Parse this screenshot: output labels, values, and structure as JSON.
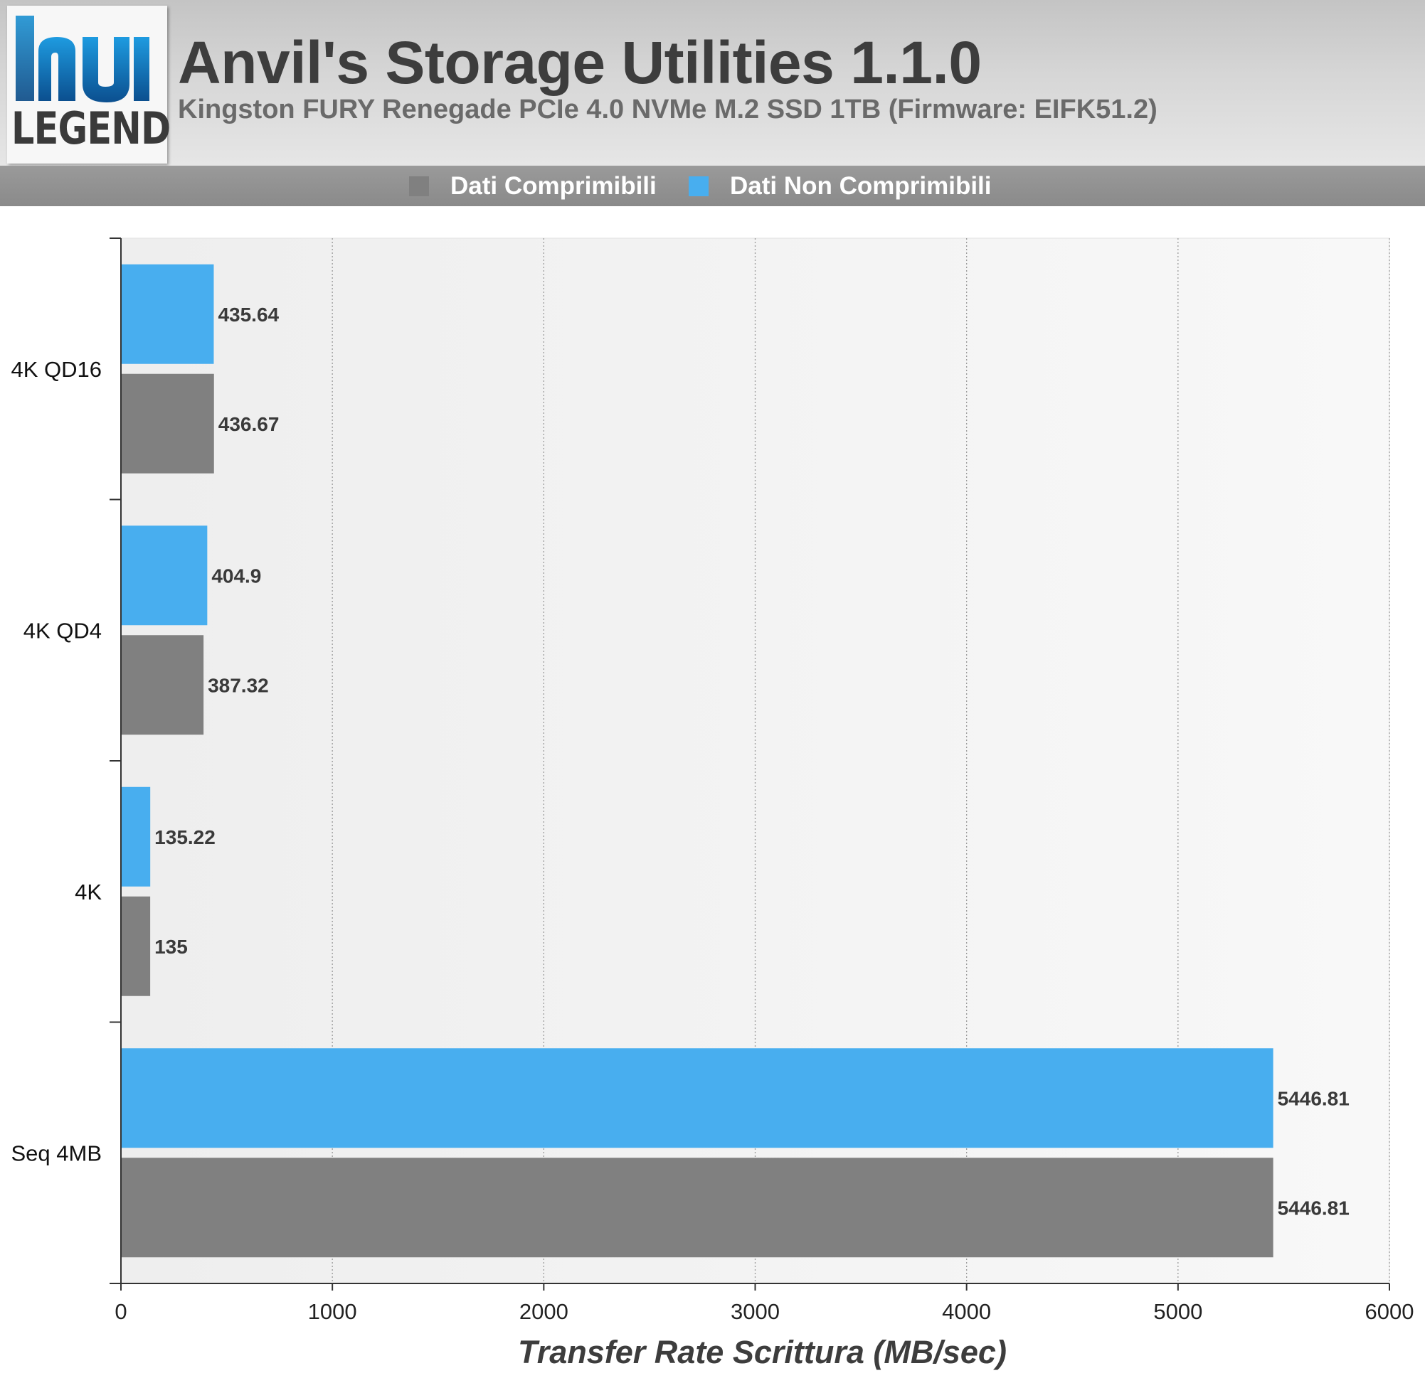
{
  "header": {
    "title": "Anvil's Storage Utilities 1.1.0",
    "subtitle": "Kingston FURY Renegade PCIe 4.0 NVMe M.2 SSD 1TB (Firmware: EIFK51.2)",
    "logo_text": "LEGEND"
  },
  "colors": {
    "compressible": "#808080",
    "incompressible": "#48aeef"
  },
  "chart_data": {
    "type": "bar",
    "orientation": "horizontal",
    "categories": [
      "4K QD16",
      "4K QD4",
      "4K",
      "Seq 4MB"
    ],
    "series": [
      {
        "name": "Dati Non Comprimibili",
        "values": [
          435.64,
          404.9,
          135.22,
          5446.81
        ]
      },
      {
        "name": "Dati Comprimibili",
        "values": [
          436.67,
          387.32,
          135,
          5446.81
        ]
      }
    ],
    "data_labels": [
      [
        "435.64",
        "404.9",
        "135.22",
        "5446.81"
      ],
      [
        "436.67",
        "387.32",
        "135",
        "5446.81"
      ]
    ],
    "legend": [
      "Dati Comprimibili",
      "Dati Non Comprimibili"
    ],
    "legend_position": "top",
    "xlabel": "Transfer Rate Scrittura (MB/sec)",
    "ylabel": "",
    "xlim": [
      0,
      6000
    ],
    "xticks": [
      0,
      1000,
      2000,
      3000,
      4000,
      5000,
      6000
    ],
    "grid": true
  }
}
